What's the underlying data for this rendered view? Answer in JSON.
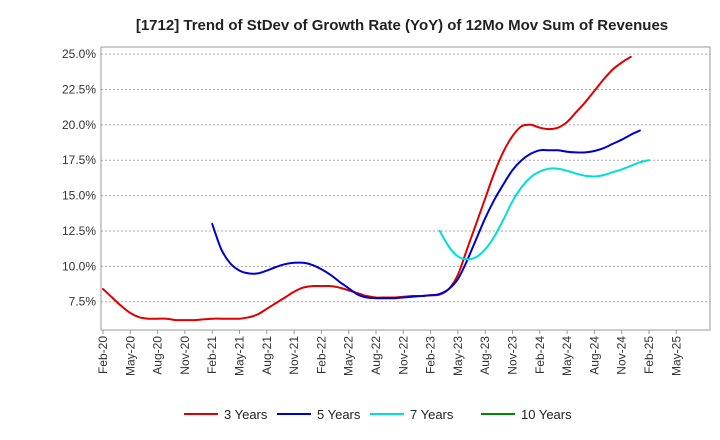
{
  "chart_data": {
    "type": "line",
    "title": "[1712]  Trend of StDev of Growth Rate (YoY) of 12Mo Mov Sum of Revenues",
    "xlabel": "",
    "ylabel": "",
    "ylim": [
      5.5,
      25.5
    ],
    "y_ticks": [
      7.5,
      10.0,
      12.5,
      15.0,
      17.5,
      20.0,
      22.5,
      25.0
    ],
    "y_tick_labels": [
      "7.5%",
      "10.0%",
      "12.5%",
      "15.0%",
      "17.5%",
      "20.0%",
      "22.5%",
      "25.0%"
    ],
    "x_tick_labels": [
      "Feb-20",
      "May-20",
      "Aug-20",
      "Nov-20",
      "Feb-21",
      "May-21",
      "Aug-21",
      "Nov-21",
      "Feb-22",
      "May-22",
      "Aug-22",
      "Nov-22",
      "Feb-23",
      "May-23",
      "Aug-23",
      "Nov-23",
      "Feb-24",
      "May-24",
      "Aug-24",
      "Nov-24",
      "Feb-25",
      "May-25"
    ],
    "x_count": 64,
    "series": [
      {
        "name": "3 Years",
        "color": "#dd0000",
        "start_index": 0,
        "values": [
          8.4,
          7.8,
          7.2,
          6.7,
          6.4,
          6.3,
          6.3,
          6.3,
          6.2,
          6.2,
          6.2,
          6.25,
          6.3,
          6.3,
          6.3,
          6.3,
          6.4,
          6.6,
          7.0,
          7.4,
          7.8,
          8.2,
          8.5,
          8.6,
          8.6,
          8.6,
          8.5,
          8.3,
          8.1,
          7.9,
          7.8,
          7.8,
          7.8,
          7.85,
          7.9,
          7.9,
          7.95,
          8.0,
          8.4,
          9.4,
          11.2,
          13.0,
          14.8,
          16.6,
          18.1,
          19.2,
          19.9,
          20.0,
          19.8,
          19.7,
          19.8,
          20.2,
          20.9,
          21.6,
          22.4,
          23.2,
          23.9,
          24.4,
          24.8
        ]
      },
      {
        "name": "5 Years",
        "color": "#0000cc",
        "start_index": 12,
        "values": [
          13.0,
          11.2,
          10.2,
          9.7,
          9.5,
          9.5,
          9.7,
          9.95,
          10.15,
          10.25,
          10.25,
          10.1,
          9.8,
          9.4,
          8.9,
          8.45,
          8.0,
          7.8,
          7.75,
          7.75,
          7.75,
          7.8,
          7.85,
          7.9,
          7.95,
          8.05,
          8.4,
          9.1,
          10.4,
          11.9,
          13.4,
          14.7,
          15.8,
          16.8,
          17.5,
          17.95,
          18.2,
          18.2,
          18.2,
          18.1,
          18.05,
          18.05,
          18.15,
          18.35,
          18.65,
          18.95,
          19.3,
          19.6
        ]
      },
      {
        "name": "7 Years",
        "color": "#00dddd",
        "start_index": 37,
        "values": [
          12.5,
          11.4,
          10.7,
          10.5,
          10.65,
          11.2,
          12.1,
          13.3,
          14.6,
          15.6,
          16.3,
          16.7,
          16.9,
          16.9,
          16.75,
          16.55,
          16.4,
          16.35,
          16.45,
          16.65,
          16.85,
          17.1,
          17.35,
          17.5
        ]
      },
      {
        "name": "10 Years",
        "color": "#008800",
        "start_index": 0,
        "values": []
      }
    ]
  }
}
